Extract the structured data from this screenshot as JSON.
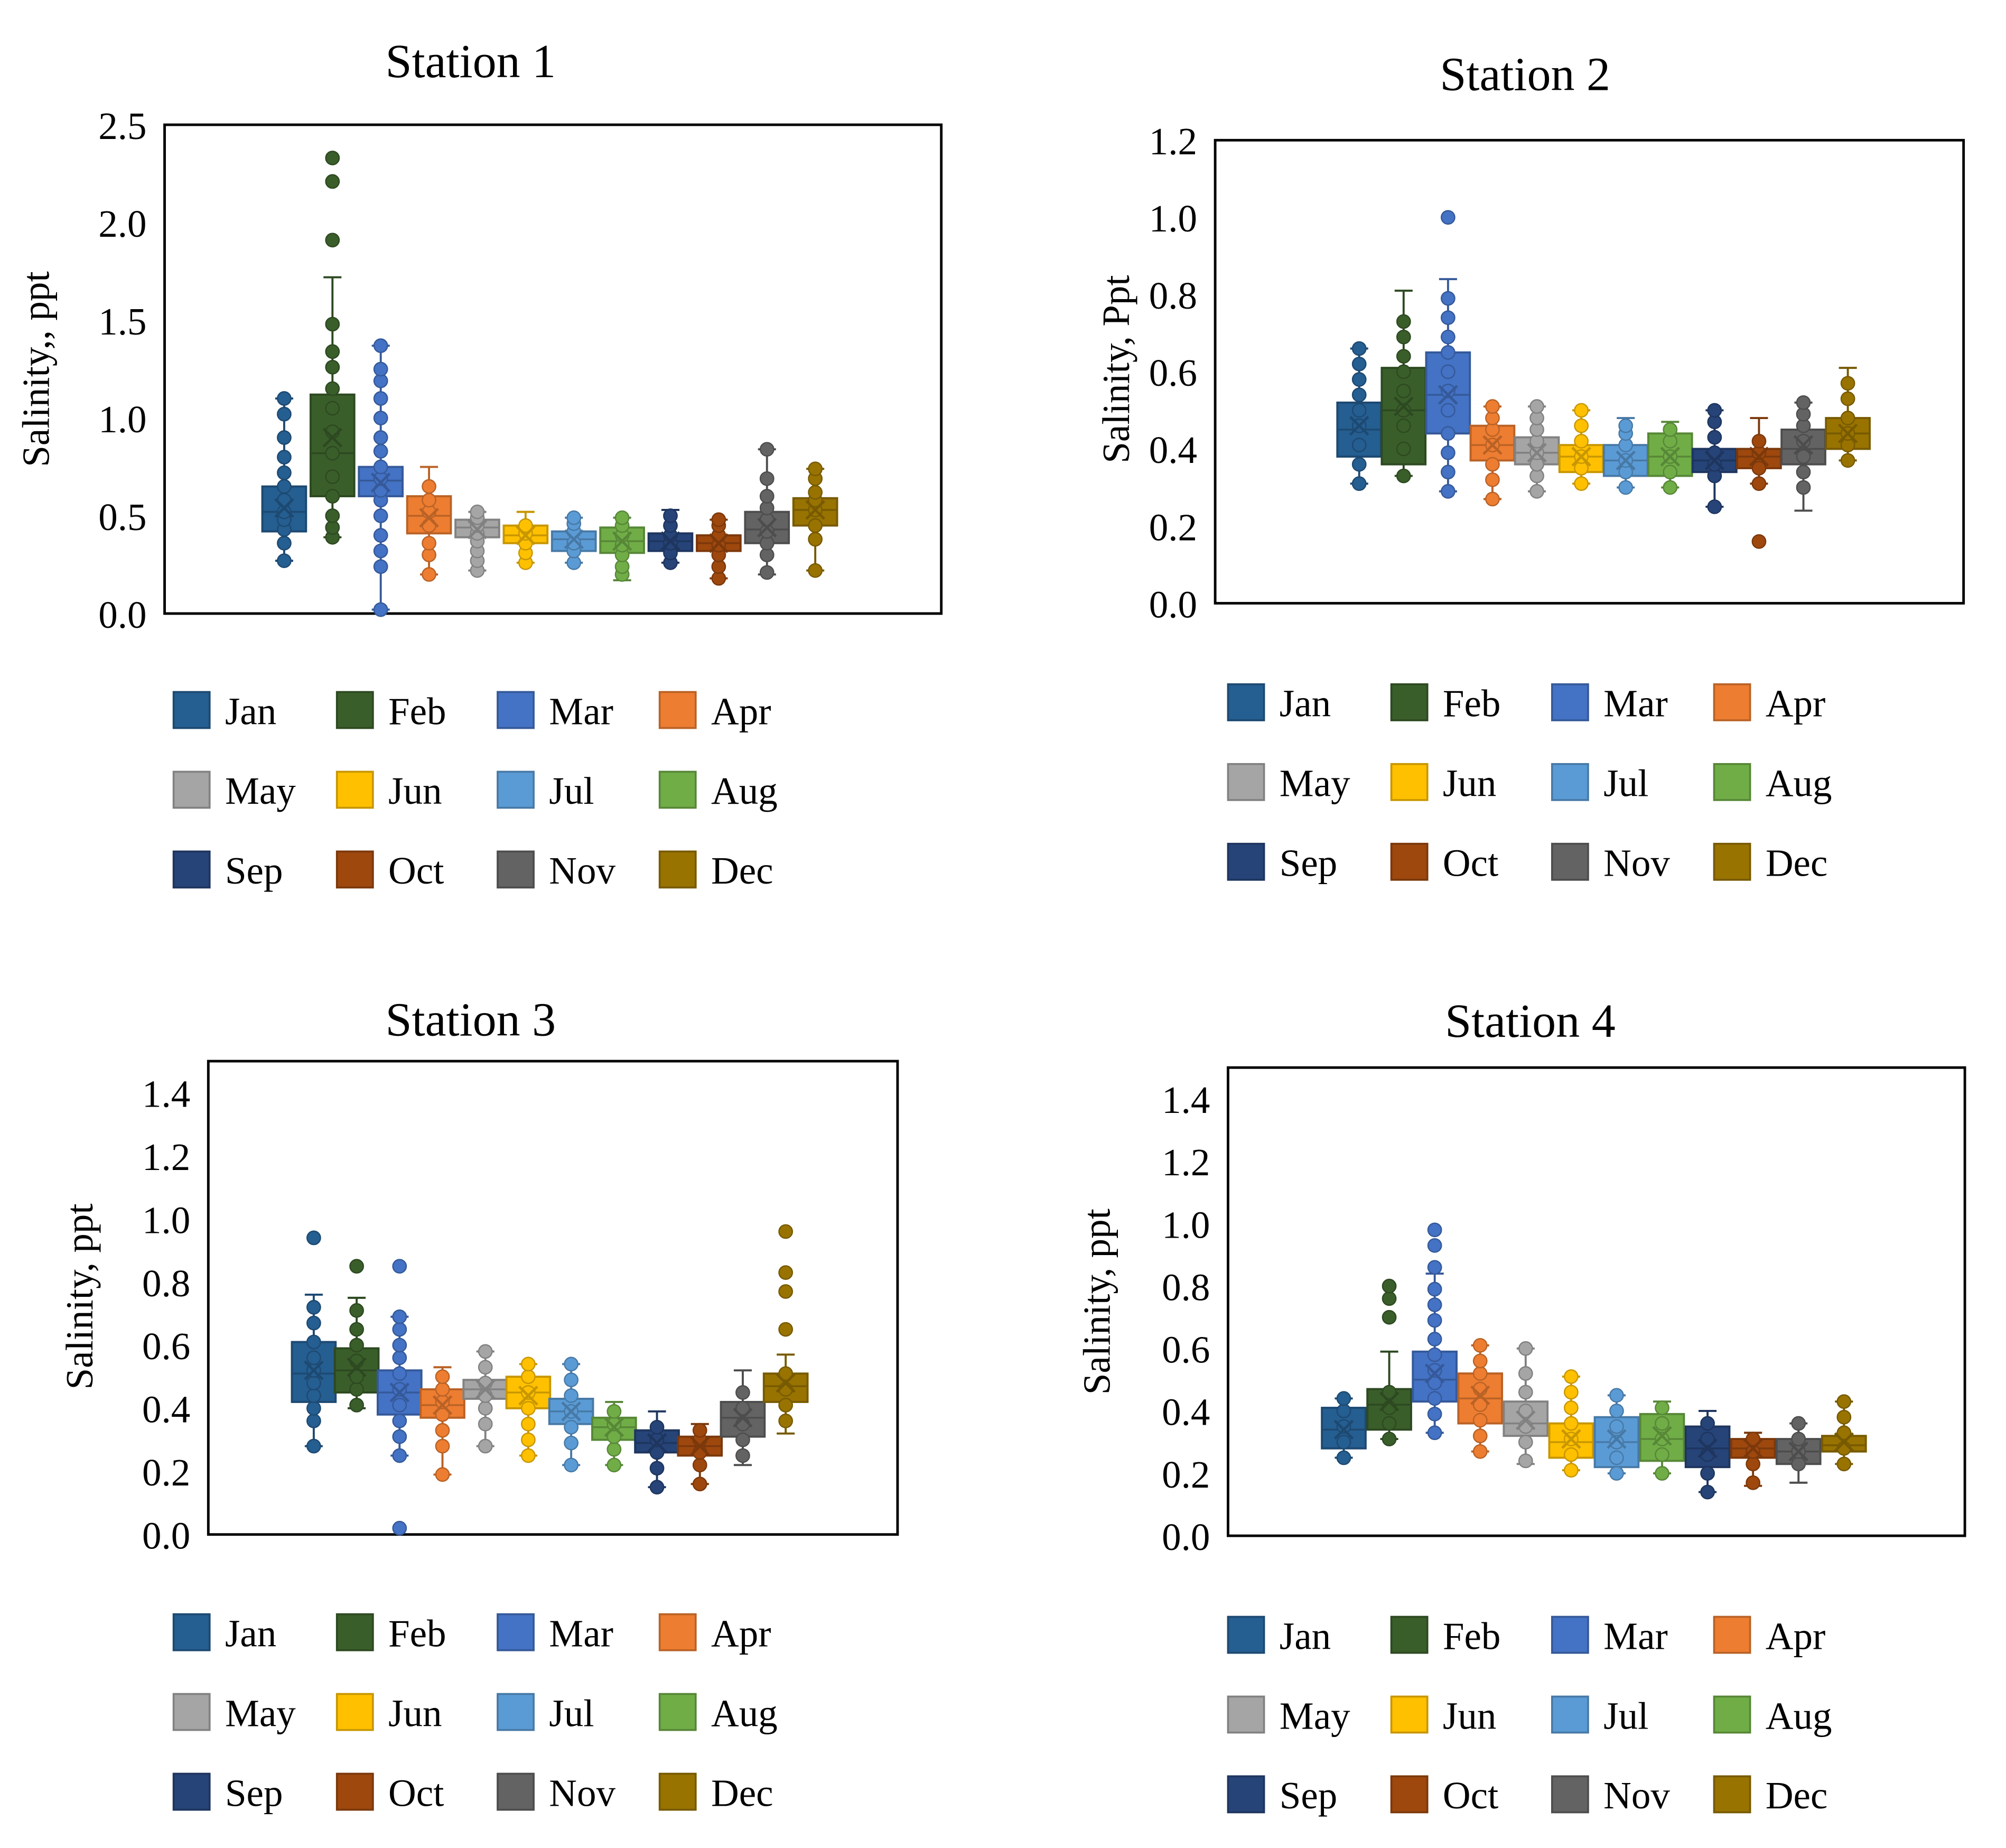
{
  "months": [
    "Jan",
    "Feb",
    "Mar",
    "Apr",
    "May",
    "Jun",
    "Jul",
    "Aug",
    "Sep",
    "Oct",
    "Nov",
    "Dec"
  ],
  "colors": [
    "#255E91",
    "#3A5E2A",
    "#4472C4",
    "#ED7D31",
    "#A5A5A5",
    "#FFC000",
    "#5B9BD5",
    "#70AD47",
    "#264478",
    "#9E480E",
    "#636363",
    "#997300"
  ],
  "chart_data": [
    {
      "type": "box",
      "title": "Station 1",
      "ylabel": "Salinity,, ppt",
      "ylim": [
        0,
        2.5
      ],
      "yticks": [
        "0.0",
        "0.5",
        "1.0",
        "1.5",
        "2.0",
        "2.5"
      ],
      "legend": "bottom",
      "series": [
        {
          "name": "Jan",
          "min": 0.27,
          "q1": 0.42,
          "median": 0.52,
          "mean": 0.54,
          "q3": 0.65,
          "max": 1.1,
          "points": [
            0.27,
            0.36,
            0.43,
            0.48,
            0.52,
            0.58,
            0.65,
            0.72,
            0.8,
            0.9,
            1.02,
            1.1
          ]
        },
        {
          "name": "Feb",
          "min": 0.39,
          "q1": 0.6,
          "median": 0.82,
          "mean": 0.9,
          "q3": 1.12,
          "max": 1.72,
          "points": [
            0.39,
            0.44,
            0.5,
            0.6,
            0.7,
            0.82,
            0.93,
            1.05,
            1.15,
            1.26,
            1.34,
            1.48,
            1.91,
            2.21,
            2.33
          ]
        },
        {
          "name": "Mar",
          "min": 0.02,
          "q1": 0.6,
          "median": 0.68,
          "mean": 0.67,
          "q3": 0.75,
          "max": 1.37,
          "points": [
            0.02,
            0.24,
            0.32,
            0.4,
            0.5,
            0.58,
            0.63,
            0.69,
            0.75,
            0.83,
            0.9,
            1.0,
            1.1,
            1.19,
            1.25,
            1.37
          ]
        },
        {
          "name": "Apr",
          "min": 0.2,
          "q1": 0.41,
          "median": 0.5,
          "mean": 0.49,
          "q3": 0.6,
          "max": 0.75,
          "points": [
            0.2,
            0.3,
            0.36,
            0.45,
            0.52,
            0.58,
            0.65
          ]
        },
        {
          "name": "May",
          "min": 0.22,
          "q1": 0.39,
          "median": 0.44,
          "mean": 0.43,
          "q3": 0.48,
          "max": 0.52,
          "points": [
            0.22,
            0.27,
            0.32,
            0.37,
            0.41,
            0.45,
            0.49,
            0.52
          ]
        },
        {
          "name": "Jun",
          "min": 0.26,
          "q1": 0.36,
          "median": 0.4,
          "mean": 0.4,
          "q3": 0.45,
          "max": 0.52,
          "points": [
            0.26,
            0.31,
            0.36,
            0.41,
            0.45
          ]
        },
        {
          "name": "Jul",
          "min": 0.26,
          "q1": 0.32,
          "median": 0.38,
          "mean": 0.38,
          "q3": 0.42,
          "max": 0.49,
          "points": [
            0.26,
            0.32,
            0.36,
            0.42,
            0.46,
            0.49
          ]
        },
        {
          "name": "Aug",
          "min": 0.17,
          "q1": 0.31,
          "median": 0.37,
          "mean": 0.37,
          "q3": 0.44,
          "max": 0.49,
          "points": [
            0.2,
            0.24,
            0.3,
            0.35,
            0.4,
            0.45,
            0.49
          ]
        },
        {
          "name": "Sep",
          "min": 0.26,
          "q1": 0.32,
          "median": 0.37,
          "mean": 0.37,
          "q3": 0.41,
          "max": 0.53,
          "points": [
            0.26,
            0.31,
            0.36,
            0.4,
            0.45,
            0.5
          ]
        },
        {
          "name": "Oct",
          "min": 0.18,
          "q1": 0.32,
          "median": 0.36,
          "mean": 0.36,
          "q3": 0.4,
          "max": 0.48,
          "points": [
            0.18,
            0.24,
            0.3,
            0.35,
            0.4,
            0.45,
            0.48
          ]
        },
        {
          "name": "Nov",
          "min": 0.2,
          "q1": 0.36,
          "median": 0.43,
          "mean": 0.44,
          "q3": 0.52,
          "max": 0.84,
          "points": [
            0.21,
            0.3,
            0.36,
            0.42,
            0.48,
            0.54,
            0.6,
            0.69,
            0.84
          ]
        },
        {
          "name": "Dec",
          "min": 0.22,
          "q1": 0.45,
          "median": 0.53,
          "mean": 0.53,
          "q3": 0.59,
          "max": 0.74,
          "points": [
            0.22,
            0.38,
            0.45,
            0.53,
            0.58,
            0.62,
            0.69,
            0.74
          ]
        }
      ]
    },
    {
      "type": "box",
      "title": "Station 2",
      "ylabel": "Salinity, Ppt",
      "ylim": [
        0,
        1.2
      ],
      "yticks": [
        "0.0",
        "0.2",
        "0.4",
        "0.6",
        "0.8",
        "1.0",
        "1.2"
      ],
      "legend": "bottom",
      "series": [
        {
          "name": "Jan",
          "min": 0.31,
          "q1": 0.38,
          "median": 0.45,
          "mean": 0.46,
          "q3": 0.52,
          "max": 0.66,
          "points": [
            0.31,
            0.36,
            0.41,
            0.46,
            0.5,
            0.54,
            0.58,
            0.62,
            0.66
          ]
        },
        {
          "name": "Feb",
          "min": 0.33,
          "q1": 0.36,
          "median": 0.5,
          "mean": 0.51,
          "q3": 0.61,
          "max": 0.81,
          "points": [
            0.33,
            0.4,
            0.46,
            0.5,
            0.55,
            0.6,
            0.64,
            0.69,
            0.73
          ]
        },
        {
          "name": "Mar",
          "min": 0.29,
          "q1": 0.44,
          "median": 0.54,
          "mean": 0.54,
          "q3": 0.65,
          "max": 0.84,
          "points": [
            0.29,
            0.34,
            0.39,
            0.44,
            0.5,
            0.55,
            0.6,
            0.65,
            0.69,
            0.74,
            0.79,
            1.0
          ]
        },
        {
          "name": "Apr",
          "min": 0.27,
          "q1": 0.37,
          "median": 0.41,
          "mean": 0.41,
          "q3": 0.46,
          "max": 0.51,
          "points": [
            0.27,
            0.32,
            0.36,
            0.41,
            0.45,
            0.48,
            0.51
          ]
        },
        {
          "name": "May",
          "min": 0.29,
          "q1": 0.36,
          "median": 0.39,
          "mean": 0.39,
          "q3": 0.43,
          "max": 0.51,
          "points": [
            0.29,
            0.33,
            0.36,
            0.39,
            0.42,
            0.45,
            0.48,
            0.51
          ]
        },
        {
          "name": "Jun",
          "min": 0.31,
          "q1": 0.34,
          "median": 0.38,
          "mean": 0.38,
          "q3": 0.41,
          "max": 0.5,
          "points": [
            0.31,
            0.35,
            0.38,
            0.42,
            0.46,
            0.5
          ]
        },
        {
          "name": "Jul",
          "min": 0.3,
          "q1": 0.33,
          "median": 0.37,
          "mean": 0.37,
          "q3": 0.41,
          "max": 0.48,
          "points": [
            0.3,
            0.34,
            0.37,
            0.41,
            0.44,
            0.46
          ]
        },
        {
          "name": "Aug",
          "min": 0.3,
          "q1": 0.33,
          "median": 0.38,
          "mean": 0.38,
          "q3": 0.44,
          "max": 0.47,
          "points": [
            0.3,
            0.34,
            0.38,
            0.42,
            0.45
          ]
        },
        {
          "name": "Sep",
          "min": 0.25,
          "q1": 0.34,
          "median": 0.37,
          "mean": 0.37,
          "q3": 0.4,
          "max": 0.5,
          "points": [
            0.25,
            0.33,
            0.36,
            0.39,
            0.43,
            0.47,
            0.5
          ]
        },
        {
          "name": "Oct",
          "min": 0.31,
          "q1": 0.35,
          "median": 0.38,
          "mean": 0.38,
          "q3": 0.4,
          "max": 0.48,
          "points": [
            0.16,
            0.31,
            0.35,
            0.39,
            0.42
          ]
        },
        {
          "name": "Nov",
          "min": 0.24,
          "q1": 0.36,
          "median": 0.4,
          "mean": 0.41,
          "q3": 0.45,
          "max": 0.52,
          "points": [
            0.3,
            0.34,
            0.38,
            0.42,
            0.46,
            0.49,
            0.52
          ]
        },
        {
          "name": "Dec",
          "min": 0.37,
          "q1": 0.4,
          "median": 0.44,
          "mean": 0.44,
          "q3": 0.48,
          "max": 0.61,
          "points": [
            0.37,
            0.41,
            0.44,
            0.48,
            0.53,
            0.57
          ]
        }
      ]
    },
    {
      "type": "box",
      "title": "Station 3",
      "ylabel": "Salinity, ppt",
      "ylim": [
        0,
        1.5
      ],
      "yticks": [
        "0.0",
        "0.2",
        "0.4",
        "0.6",
        "0.8",
        "1.0",
        "1.2",
        "1.4"
      ],
      "legend": "bottom",
      "series": [
        {
          "name": "Jan",
          "min": 0.28,
          "q1": 0.42,
          "median": 0.51,
          "mean": 0.52,
          "q3": 0.61,
          "max": 0.76,
          "points": [
            0.28,
            0.36,
            0.4,
            0.44,
            0.48,
            0.52,
            0.56,
            0.61,
            0.67,
            0.72,
            0.94
          ]
        },
        {
          "name": "Feb",
          "min": 0.4,
          "q1": 0.45,
          "median": 0.52,
          "mean": 0.53,
          "q3": 0.59,
          "max": 0.75,
          "points": [
            0.41,
            0.46,
            0.5,
            0.55,
            0.6,
            0.65,
            0.71,
            0.85
          ]
        },
        {
          "name": "Mar",
          "min": 0.25,
          "q1": 0.38,
          "median": 0.45,
          "mean": 0.45,
          "q3": 0.52,
          "max": 0.69,
          "points": [
            0.02,
            0.25,
            0.31,
            0.36,
            0.41,
            0.46,
            0.51,
            0.56,
            0.6,
            0.65,
            0.69,
            0.85
          ]
        },
        {
          "name": "Apr",
          "min": 0.19,
          "q1": 0.37,
          "median": 0.41,
          "mean": 0.41,
          "q3": 0.46,
          "max": 0.53,
          "points": [
            0.19,
            0.28,
            0.33,
            0.38,
            0.42,
            0.46,
            0.5
          ]
        },
        {
          "name": "May",
          "min": 0.28,
          "q1": 0.43,
          "median": 0.46,
          "mean": 0.46,
          "q3": 0.49,
          "max": 0.58,
          "points": [
            0.28,
            0.35,
            0.4,
            0.44,
            0.48,
            0.53,
            0.58
          ]
        },
        {
          "name": "Jun",
          "min": 0.25,
          "q1": 0.4,
          "median": 0.45,
          "mean": 0.44,
          "q3": 0.5,
          "max": 0.54,
          "points": [
            0.25,
            0.3,
            0.35,
            0.4,
            0.45,
            0.5,
            0.54
          ]
        },
        {
          "name": "Jul",
          "min": 0.22,
          "q1": 0.35,
          "median": 0.39,
          "mean": 0.39,
          "q3": 0.43,
          "max": 0.54,
          "points": [
            0.22,
            0.29,
            0.34,
            0.39,
            0.44,
            0.49,
            0.54
          ]
        },
        {
          "name": "Aug",
          "min": 0.22,
          "q1": 0.3,
          "median": 0.34,
          "mean": 0.34,
          "q3": 0.37,
          "max": 0.42,
          "points": [
            0.22,
            0.27,
            0.31,
            0.35,
            0.39
          ]
        },
        {
          "name": "Sep",
          "min": 0.15,
          "q1": 0.26,
          "median": 0.29,
          "mean": 0.29,
          "q3": 0.33,
          "max": 0.39,
          "points": [
            0.15,
            0.21,
            0.26,
            0.3,
            0.34
          ]
        },
        {
          "name": "Oct",
          "min": 0.16,
          "q1": 0.25,
          "median": 0.28,
          "mean": 0.28,
          "q3": 0.31,
          "max": 0.35,
          "points": [
            0.16,
            0.22,
            0.26,
            0.3,
            0.33
          ]
        },
        {
          "name": "Nov",
          "min": 0.22,
          "q1": 0.31,
          "median": 0.37,
          "mean": 0.37,
          "q3": 0.42,
          "max": 0.52,
          "points": [
            0.25,
            0.3,
            0.35,
            0.4,
            0.45
          ]
        },
        {
          "name": "Dec",
          "min": 0.32,
          "q1": 0.42,
          "median": 0.47,
          "mean": 0.48,
          "q3": 0.51,
          "max": 0.57,
          "points": [
            0.36,
            0.41,
            0.46,
            0.51,
            0.65,
            0.77,
            0.83,
            0.96
          ]
        }
      ]
    },
    {
      "type": "box",
      "title": "Station 4",
      "ylabel": "Salinity, ppt",
      "ylim": [
        0,
        1.5
      ],
      "yticks": [
        "0.0",
        "0.2",
        "0.4",
        "0.6",
        "0.8",
        "1.0",
        "1.2",
        "1.4"
      ],
      "legend": "bottom",
      "series": [
        {
          "name": "Jan",
          "min": 0.25,
          "q1": 0.28,
          "median": 0.34,
          "mean": 0.34,
          "q3": 0.41,
          "max": 0.44,
          "points": [
            0.25,
            0.3,
            0.35,
            0.4,
            0.44
          ]
        },
        {
          "name": "Feb",
          "min": 0.31,
          "q1": 0.34,
          "median": 0.42,
          "mean": 0.43,
          "q3": 0.47,
          "max": 0.59,
          "points": [
            0.31,
            0.36,
            0.41,
            0.46,
            0.7,
            0.76,
            0.8
          ]
        },
        {
          "name": "Mar",
          "min": 0.33,
          "q1": 0.43,
          "median": 0.5,
          "mean": 0.52,
          "q3": 0.59,
          "max": 0.84,
          "points": [
            0.33,
            0.39,
            0.44,
            0.49,
            0.53,
            0.58,
            0.63,
            0.69,
            0.74,
            0.79,
            0.86,
            0.93,
            0.98
          ]
        },
        {
          "name": "Apr",
          "min": 0.27,
          "q1": 0.36,
          "median": 0.44,
          "mean": 0.45,
          "q3": 0.52,
          "max": 0.61,
          "points": [
            0.27,
            0.32,
            0.37,
            0.42,
            0.47,
            0.52,
            0.56,
            0.61
          ]
        },
        {
          "name": "May",
          "min": 0.23,
          "q1": 0.32,
          "median": 0.36,
          "mean": 0.37,
          "q3": 0.43,
          "max": 0.6,
          "points": [
            0.24,
            0.3,
            0.35,
            0.4,
            0.46,
            0.52,
            0.6
          ]
        },
        {
          "name": "Jun",
          "min": 0.21,
          "q1": 0.25,
          "median": 0.3,
          "mean": 0.31,
          "q3": 0.36,
          "max": 0.51,
          "points": [
            0.21,
            0.26,
            0.31,
            0.36,
            0.41,
            0.46,
            0.51
          ]
        },
        {
          "name": "Jul",
          "min": 0.2,
          "q1": 0.22,
          "median": 0.3,
          "mean": 0.31,
          "q3": 0.38,
          "max": 0.45,
          "points": [
            0.2,
            0.25,
            0.3,
            0.35,
            0.4,
            0.45
          ]
        },
        {
          "name": "Aug",
          "min": 0.2,
          "q1": 0.24,
          "median": 0.31,
          "mean": 0.32,
          "q3": 0.39,
          "max": 0.43,
          "points": [
            0.2,
            0.26,
            0.31,
            0.36,
            0.41
          ]
        },
        {
          "name": "Sep",
          "min": 0.14,
          "q1": 0.22,
          "median": 0.28,
          "mean": 0.28,
          "q3": 0.35,
          "max": 0.4,
          "points": [
            0.14,
            0.2,
            0.26,
            0.31,
            0.36
          ]
        },
        {
          "name": "Oct",
          "min": 0.16,
          "q1": 0.25,
          "median": 0.28,
          "mean": 0.28,
          "q3": 0.31,
          "max": 0.33,
          "points": [
            0.17,
            0.23,
            0.27,
            0.31
          ]
        },
        {
          "name": "Nov",
          "min": 0.17,
          "q1": 0.23,
          "median": 0.27,
          "mean": 0.27,
          "q3": 0.31,
          "max": 0.36,
          "points": [
            0.23,
            0.27,
            0.31,
            0.36
          ]
        },
        {
          "name": "Dec",
          "min": 0.23,
          "q1": 0.27,
          "median": 0.29,
          "mean": 0.3,
          "q3": 0.32,
          "max": 0.43,
          "points": [
            0.23,
            0.28,
            0.33,
            0.38,
            0.43
          ]
        }
      ]
    }
  ]
}
